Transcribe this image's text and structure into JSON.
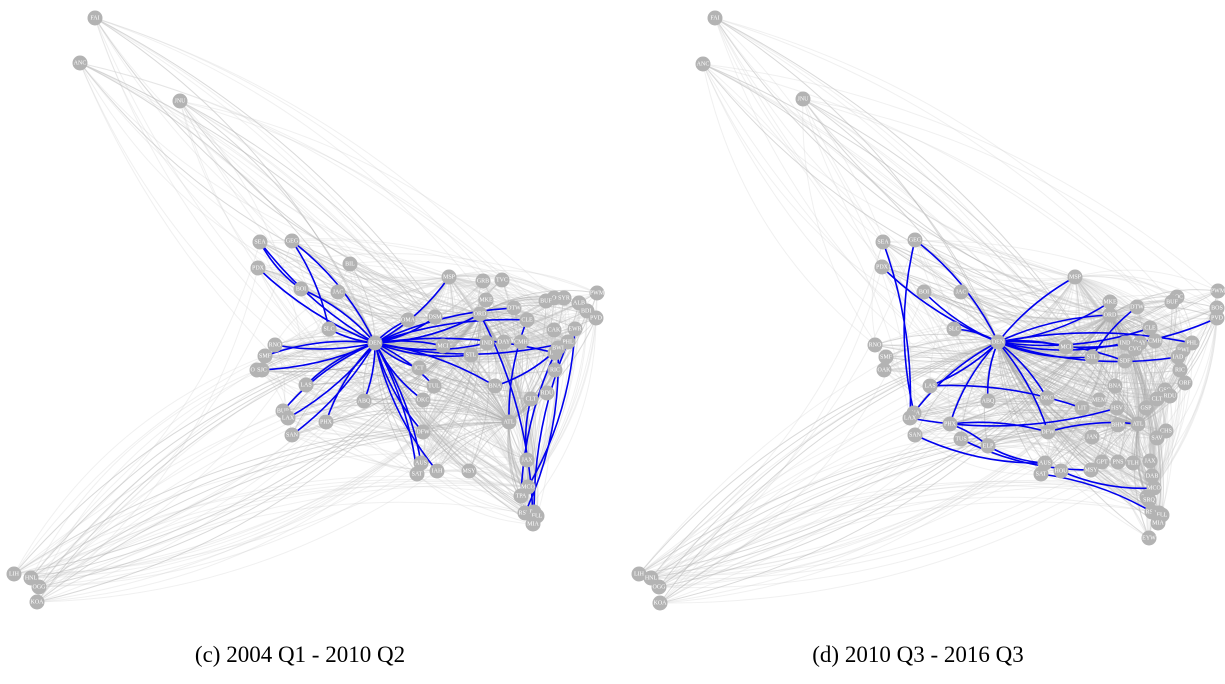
{
  "panels": [
    {
      "caption": "(c) 2004 Q1 - 2010 Q2",
      "nodes": [
        "FAI",
        "ANC",
        "JNU",
        "SEA",
        "GEG",
        "BIL",
        "PDX",
        "BOI",
        "JAC",
        "SLC",
        "MSP",
        "GRB",
        "TVC",
        "MKE",
        "DTW",
        "ROC",
        "SYR",
        "BUF",
        "ALB",
        "PWM",
        "BDL",
        "PVD",
        "ORD",
        "CLE",
        "DSM",
        "OMA",
        "CAK",
        "EWR",
        "CMH",
        "IND",
        "DAY",
        "MCI",
        "DEN",
        "STL",
        "PHL",
        "IAD",
        "BWI",
        "RNO",
        "SMF",
        "OAK",
        "SJC",
        "ICT",
        "RIC",
        "TUL",
        "LAS",
        "ABQ",
        "OKC",
        "BNA",
        "RDU",
        "CLT",
        "BUR",
        "LAX",
        "PHX",
        "SAN",
        "ATL",
        "DFW",
        "AUS",
        "IAH",
        "MSY",
        "SAT",
        "JAX",
        "MCO",
        "TPA",
        "RSW",
        "PBI",
        "FLL",
        "MIA",
        "LIH",
        "HNL",
        "OGG",
        "KOA"
      ]
    },
    {
      "caption": "(d) 2010 Q3 - 2016 Q3",
      "nodes": [
        "FAI",
        "ANC",
        "JNU",
        "SEA",
        "GEG",
        "PDX",
        "BOI",
        "JAC",
        "SLC",
        "MSP",
        "MKE",
        "DTW",
        "ROC",
        "BUF",
        "PWM",
        "BOS",
        "PVD",
        "ORD",
        "CLE",
        "DEN",
        "MCI",
        "IND",
        "DAY",
        "CMH",
        "CVG",
        "PHL",
        "BWI",
        "IAD",
        "SDF",
        "STL",
        "RNO",
        "SMF",
        "OAK",
        "RIC",
        "ORF",
        "BNA",
        "LAS",
        "GSO",
        "RDU",
        "CLT",
        "GSP",
        "ABQ",
        "OKC",
        "LIT",
        "MEM",
        "HSV",
        "BHM",
        "ATL",
        "CHS",
        "SAV",
        "SNA",
        "LAX",
        "SAN",
        "PHX",
        "TUS",
        "ELP",
        "DFW",
        "JAN",
        "AUS",
        "SAT",
        "HOU",
        "MSY",
        "GPT",
        "PNS",
        "TLH",
        "JAX",
        "DAB",
        "MCO",
        "TPA",
        "SRQ",
        "RSW",
        "PBI",
        "FLL",
        "MIA",
        "EYW",
        "LIH",
        "HNL",
        "OGG",
        "KOA"
      ]
    }
  ]
}
